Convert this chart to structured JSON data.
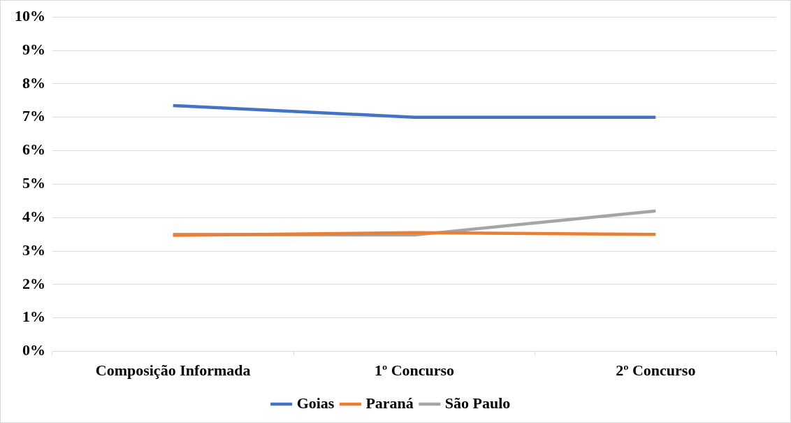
{
  "chart_data": {
    "type": "line",
    "categories": [
      "Composição Informada",
      "1º Concurso",
      "2º Concurso"
    ],
    "series": [
      {
        "name": "Goias",
        "color": "#4472c4",
        "values": [
          7.35,
          7,
          7
        ]
      },
      {
        "name": "Paraná",
        "color": "#ed7d31",
        "values": [
          3.47,
          3.55,
          3.5
        ]
      },
      {
        "name": "São Paulo",
        "color": "#a5a5a5",
        "values": [
          3.5,
          3.48,
          4.2
        ]
      }
    ],
    "ylim": [
      0,
      10
    ],
    "yticks": [
      {
        "value": 0,
        "label": "0%"
      },
      {
        "value": 1,
        "label": "1%"
      },
      {
        "value": 2,
        "label": "2%"
      },
      {
        "value": 3,
        "label": "3%"
      },
      {
        "value": 4,
        "label": "4%"
      },
      {
        "value": 5,
        "label": "5%"
      },
      {
        "value": 6,
        "label": "6%"
      },
      {
        "value": 7,
        "label": "7%"
      },
      {
        "value": 8,
        "label": "8%"
      },
      {
        "value": 9,
        "label": "9%"
      },
      {
        "value": 10,
        "label": "10%"
      }
    ],
    "grid": "y",
    "legend": "bottom",
    "marker": "none"
  }
}
